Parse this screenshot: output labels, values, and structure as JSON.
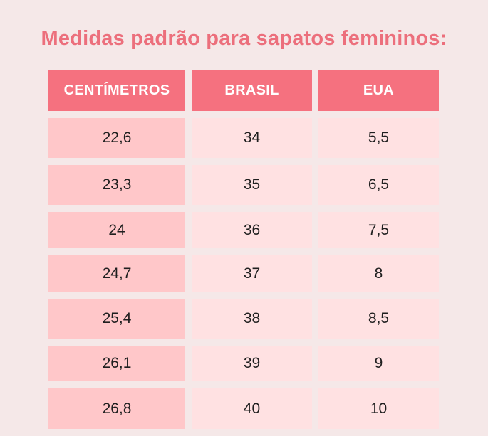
{
  "title": "Medidas padrão para sapatos femininos:",
  "table": {
    "headers": [
      "CENTÍMETROS",
      "BRASIL",
      "EUA"
    ],
    "rows": [
      [
        "22,6",
        "34",
        "5,5"
      ],
      [
        "23,3",
        "35",
        "6,5"
      ],
      [
        "24",
        "36",
        "7,5"
      ],
      [
        "24,7",
        "37",
        "8"
      ],
      [
        "25,4",
        "38",
        "8,5"
      ],
      [
        "26,1",
        "39",
        "9"
      ],
      [
        "26,8",
        "40",
        "10"
      ]
    ]
  },
  "colors": {
    "background": "#f5e8e8",
    "title": "#ec6f7c",
    "header": "#f5717f",
    "first_column": "#ffc7c9",
    "other_columns": "#ffe1e2"
  }
}
